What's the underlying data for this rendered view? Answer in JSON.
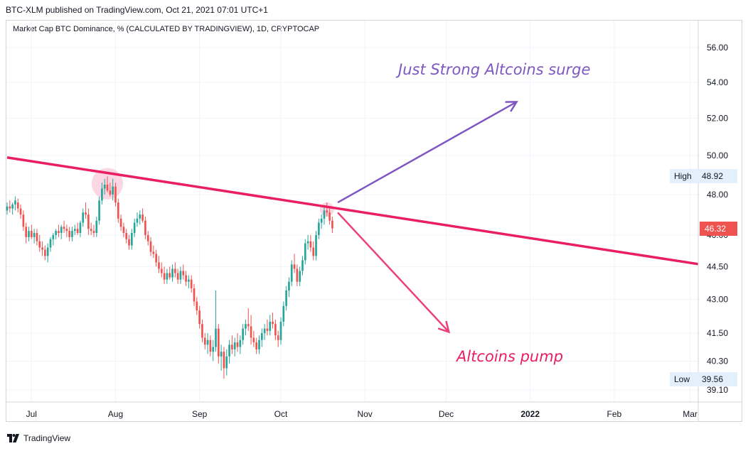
{
  "header": {
    "publisher": "BTC-XLM published on TradingView.com, Oct 21, 2021 07:01 UTC+1",
    "subtitle": "Market Cap BTC Dominance, % (CALCULATED BY TRADINGVIEW), 1D, CRYPTOCAP"
  },
  "footer": {
    "brand": "TradingView"
  },
  "colors": {
    "up": "#26a69a",
    "down": "#ef5350",
    "trendline": "#e91e63",
    "arrow_up": "#7e57c2",
    "arrow_down": "#ec407a",
    "circle": "#f8bbd0",
    "grid": "#f0f3fa",
    "axis_text": "#131722"
  },
  "chart_data": {
    "type": "candlestick",
    "y_axis": {
      "scale": "log",
      "position": "right",
      "tick_labels": [
        "56.00",
        "54.00",
        "52.00",
        "50.00",
        "48.00",
        "46.00",
        "44.50",
        "43.00",
        "41.50",
        "40.30",
        "39.10"
      ],
      "tick_values": [
        56.0,
        54.0,
        52.0,
        50.0,
        48.0,
        46.0,
        44.5,
        43.0,
        41.5,
        40.3,
        39.1
      ],
      "range": [
        38.7,
        57.5
      ]
    },
    "x_axis": {
      "tick_labels": [
        "Jul",
        "Aug",
        "Sep",
        "Oct",
        "Nov",
        "Dec",
        "2022",
        "Feb",
        "Mar"
      ],
      "tick_dates": [
        "2021-07-01",
        "2021-08-01",
        "2021-09-01",
        "2021-10-01",
        "2021-11-01",
        "2021-12-01",
        "2022-01-01",
        "2022-02-01",
        "2022-03-01"
      ],
      "bold_labels": [
        "2022"
      ],
      "range": [
        "2021-06-22",
        "2022-03-04"
      ]
    },
    "grid": true,
    "series": [
      {
        "date": "2021-06-22",
        "open": 47.2,
        "high": 47.6,
        "low": 47.0,
        "close": 47.4
      },
      {
        "date": "2021-06-23",
        "open": 47.4,
        "high": 47.7,
        "low": 47.1,
        "close": 47.3
      },
      {
        "date": "2021-06-24",
        "open": 47.3,
        "high": 47.6,
        "low": 47.0,
        "close": 47.5
      },
      {
        "date": "2021-06-25",
        "open": 47.5,
        "high": 47.9,
        "low": 47.2,
        "close": 47.7
      },
      {
        "date": "2021-06-26",
        "open": 47.6,
        "high": 47.8,
        "low": 47.1,
        "close": 47.3
      },
      {
        "date": "2021-06-27",
        "open": 47.3,
        "high": 47.5,
        "low": 46.8,
        "close": 47.0
      },
      {
        "date": "2021-06-28",
        "open": 47.0,
        "high": 47.2,
        "low": 46.2,
        "close": 46.4
      },
      {
        "date": "2021-06-29",
        "open": 46.4,
        "high": 46.6,
        "low": 45.6,
        "close": 45.9
      },
      {
        "date": "2021-06-30",
        "open": 45.9,
        "high": 46.4,
        "low": 45.7,
        "close": 46.2
      },
      {
        "date": "2021-07-01",
        "open": 46.2,
        "high": 46.5,
        "low": 45.8,
        "close": 45.9
      },
      {
        "date": "2021-07-02",
        "open": 45.9,
        "high": 46.3,
        "low": 45.6,
        "close": 46.1
      },
      {
        "date": "2021-07-03",
        "open": 46.1,
        "high": 46.3,
        "low": 45.5,
        "close": 45.7
      },
      {
        "date": "2021-07-04",
        "open": 45.7,
        "high": 46.0,
        "low": 45.2,
        "close": 45.4
      },
      {
        "date": "2021-07-05",
        "open": 45.4,
        "high": 45.7,
        "low": 45.0,
        "close": 45.3
      },
      {
        "date": "2021-07-06",
        "open": 45.3,
        "high": 45.5,
        "low": 44.8,
        "close": 45.0
      },
      {
        "date": "2021-07-07",
        "open": 45.0,
        "high": 45.6,
        "low": 44.7,
        "close": 45.4
      },
      {
        "date": "2021-07-08",
        "open": 45.4,
        "high": 45.9,
        "low": 45.2,
        "close": 45.8
      },
      {
        "date": "2021-07-09",
        "open": 45.8,
        "high": 46.1,
        "low": 45.5,
        "close": 46.0
      },
      {
        "date": "2021-07-10",
        "open": 46.0,
        "high": 46.3,
        "low": 45.8,
        "close": 46.2
      },
      {
        "date": "2021-07-11",
        "open": 46.2,
        "high": 46.5,
        "low": 45.9,
        "close": 46.1
      },
      {
        "date": "2021-07-12",
        "open": 46.1,
        "high": 46.5,
        "low": 45.8,
        "close": 46.4
      },
      {
        "date": "2021-07-13",
        "open": 46.4,
        "high": 46.7,
        "low": 46.1,
        "close": 46.3
      },
      {
        "date": "2021-07-14",
        "open": 46.3,
        "high": 46.5,
        "low": 45.9,
        "close": 46.2
      },
      {
        "date": "2021-07-15",
        "open": 46.2,
        "high": 46.4,
        "low": 45.7,
        "close": 45.9
      },
      {
        "date": "2021-07-16",
        "open": 45.9,
        "high": 46.4,
        "low": 45.7,
        "close": 46.2
      },
      {
        "date": "2021-07-17",
        "open": 46.2,
        "high": 46.5,
        "low": 46.0,
        "close": 46.3
      },
      {
        "date": "2021-07-18",
        "open": 46.3,
        "high": 46.6,
        "low": 46.0,
        "close": 46.1
      },
      {
        "date": "2021-07-19",
        "open": 46.1,
        "high": 46.7,
        "low": 45.9,
        "close": 46.6
      },
      {
        "date": "2021-07-20",
        "open": 46.6,
        "high": 47.3,
        "low": 46.4,
        "close": 47.1
      },
      {
        "date": "2021-07-21",
        "open": 47.1,
        "high": 47.6,
        "low": 46.8,
        "close": 47.0
      },
      {
        "date": "2021-07-22",
        "open": 47.0,
        "high": 47.3,
        "low": 46.0,
        "close": 46.3
      },
      {
        "date": "2021-07-23",
        "open": 46.3,
        "high": 46.6,
        "low": 46.0,
        "close": 46.2
      },
      {
        "date": "2021-07-24",
        "open": 46.2,
        "high": 46.5,
        "low": 45.9,
        "close": 46.1
      },
      {
        "date": "2021-07-25",
        "open": 46.1,
        "high": 46.9,
        "low": 45.9,
        "close": 46.7
      },
      {
        "date": "2021-07-26",
        "open": 46.7,
        "high": 47.9,
        "low": 46.5,
        "close": 47.7
      },
      {
        "date": "2021-07-27",
        "open": 47.7,
        "high": 48.6,
        "low": 47.5,
        "close": 48.3
      },
      {
        "date": "2021-07-28",
        "open": 48.3,
        "high": 48.8,
        "low": 48.0,
        "close": 48.5
      },
      {
        "date": "2021-07-29",
        "open": 48.5,
        "high": 48.92,
        "low": 48.1,
        "close": 48.2
      },
      {
        "date": "2021-07-30",
        "open": 48.2,
        "high": 48.6,
        "low": 47.9,
        "close": 48.0
      },
      {
        "date": "2021-07-31",
        "open": 48.0,
        "high": 48.8,
        "low": 47.7,
        "close": 48.4
      },
      {
        "date": "2021-08-01",
        "open": 48.4,
        "high": 48.6,
        "low": 47.4,
        "close": 47.6
      },
      {
        "date": "2021-08-02",
        "open": 47.6,
        "high": 47.8,
        "low": 46.6,
        "close": 46.8
      },
      {
        "date": "2021-08-03",
        "open": 46.8,
        "high": 47.0,
        "low": 46.2,
        "close": 46.4
      },
      {
        "date": "2021-08-04",
        "open": 46.4,
        "high": 46.6,
        "low": 45.9,
        "close": 46.1
      },
      {
        "date": "2021-08-05",
        "open": 46.1,
        "high": 46.3,
        "low": 45.6,
        "close": 45.8
      },
      {
        "date": "2021-08-06",
        "open": 45.8,
        "high": 46.0,
        "low": 45.3,
        "close": 45.5
      },
      {
        "date": "2021-08-07",
        "open": 45.5,
        "high": 46.3,
        "low": 45.3,
        "close": 46.1
      },
      {
        "date": "2021-08-08",
        "open": 46.1,
        "high": 46.8,
        "low": 45.9,
        "close": 46.6
      },
      {
        "date": "2021-08-09",
        "open": 46.6,
        "high": 47.1,
        "low": 46.4,
        "close": 46.8
      },
      {
        "date": "2021-08-10",
        "open": 46.8,
        "high": 47.2,
        "low": 46.5,
        "close": 47.0
      },
      {
        "date": "2021-08-11",
        "open": 47.0,
        "high": 47.3,
        "low": 46.6,
        "close": 46.7
      },
      {
        "date": "2021-08-12",
        "open": 46.7,
        "high": 46.9,
        "low": 45.8,
        "close": 46.0
      },
      {
        "date": "2021-08-13",
        "open": 46.0,
        "high": 46.2,
        "low": 45.5,
        "close": 45.7
      },
      {
        "date": "2021-08-14",
        "open": 45.7,
        "high": 45.9,
        "low": 45.0,
        "close": 45.2
      },
      {
        "date": "2021-08-15",
        "open": 45.2,
        "high": 45.5,
        "low": 44.9,
        "close": 45.1
      },
      {
        "date": "2021-08-16",
        "open": 45.1,
        "high": 45.3,
        "low": 44.5,
        "close": 44.7
      },
      {
        "date": "2021-08-17",
        "open": 44.7,
        "high": 45.0,
        "low": 44.2,
        "close": 44.4
      },
      {
        "date": "2021-08-18",
        "open": 44.4,
        "high": 44.7,
        "low": 44.0,
        "close": 44.2
      },
      {
        "date": "2021-08-19",
        "open": 44.2,
        "high": 44.5,
        "low": 43.7,
        "close": 43.9
      },
      {
        "date": "2021-08-20",
        "open": 43.9,
        "high": 44.4,
        "low": 43.7,
        "close": 44.2
      },
      {
        "date": "2021-08-21",
        "open": 44.2,
        "high": 44.5,
        "low": 43.9,
        "close": 44.0
      },
      {
        "date": "2021-08-22",
        "open": 44.0,
        "high": 44.6,
        "low": 43.8,
        "close": 44.4
      },
      {
        "date": "2021-08-23",
        "open": 44.4,
        "high": 44.7,
        "low": 44.0,
        "close": 44.2
      },
      {
        "date": "2021-08-24",
        "open": 44.2,
        "high": 44.4,
        "low": 43.7,
        "close": 43.9
      },
      {
        "date": "2021-08-25",
        "open": 43.9,
        "high": 44.5,
        "low": 43.7,
        "close": 44.3
      },
      {
        "date": "2021-08-26",
        "open": 44.3,
        "high": 44.6,
        "low": 43.9,
        "close": 44.1
      },
      {
        "date": "2021-08-27",
        "open": 44.1,
        "high": 44.3,
        "low": 43.6,
        "close": 43.8
      },
      {
        "date": "2021-08-28",
        "open": 43.8,
        "high": 44.1,
        "low": 43.5,
        "close": 43.9
      },
      {
        "date": "2021-08-29",
        "open": 43.9,
        "high": 44.1,
        "low": 43.3,
        "close": 43.5
      },
      {
        "date": "2021-08-30",
        "open": 43.5,
        "high": 43.7,
        "low": 42.7,
        "close": 42.9
      },
      {
        "date": "2021-08-31",
        "open": 42.9,
        "high": 43.1,
        "low": 42.3,
        "close": 42.5
      },
      {
        "date": "2021-09-01",
        "open": 42.5,
        "high": 42.7,
        "low": 41.7,
        "close": 41.9
      },
      {
        "date": "2021-09-02",
        "open": 41.9,
        "high": 42.1,
        "low": 41.1,
        "close": 41.3
      },
      {
        "date": "2021-09-03",
        "open": 41.3,
        "high": 41.5,
        "low": 40.8,
        "close": 41.0
      },
      {
        "date": "2021-09-04",
        "open": 41.0,
        "high": 41.5,
        "low": 40.6,
        "close": 41.2
      },
      {
        "date": "2021-09-05",
        "open": 41.2,
        "high": 41.4,
        "low": 40.5,
        "close": 40.7
      },
      {
        "date": "2021-09-06",
        "open": 40.7,
        "high": 41.2,
        "low": 40.3,
        "close": 40.9
      },
      {
        "date": "2021-09-07",
        "open": 40.9,
        "high": 43.4,
        "low": 40.7,
        "close": 41.7
      },
      {
        "date": "2021-09-08",
        "open": 41.7,
        "high": 41.9,
        "low": 40.2,
        "close": 40.5
      },
      {
        "date": "2021-09-09",
        "open": 40.5,
        "high": 41.0,
        "low": 39.9,
        "close": 40.7
      },
      {
        "date": "2021-09-10",
        "open": 40.7,
        "high": 40.9,
        "low": 39.56,
        "close": 40.0
      },
      {
        "date": "2021-09-11",
        "open": 40.0,
        "high": 40.8,
        "low": 39.7,
        "close": 40.5
      },
      {
        "date": "2021-09-12",
        "open": 40.5,
        "high": 41.2,
        "low": 40.2,
        "close": 41.0
      },
      {
        "date": "2021-09-13",
        "open": 41.0,
        "high": 41.4,
        "low": 40.6,
        "close": 40.8
      },
      {
        "date": "2021-09-14",
        "open": 40.8,
        "high": 41.3,
        "low": 40.5,
        "close": 41.1
      },
      {
        "date": "2021-09-15",
        "open": 41.1,
        "high": 41.5,
        "low": 40.7,
        "close": 40.9
      },
      {
        "date": "2021-09-16",
        "open": 40.9,
        "high": 41.4,
        "low": 40.6,
        "close": 41.2
      },
      {
        "date": "2021-09-17",
        "open": 41.2,
        "high": 41.9,
        "low": 41.0,
        "close": 41.7
      },
      {
        "date": "2021-09-18",
        "open": 41.7,
        "high": 42.1,
        "low": 41.4,
        "close": 41.9
      },
      {
        "date": "2021-09-19",
        "open": 41.9,
        "high": 42.6,
        "low": 41.6,
        "close": 41.8
      },
      {
        "date": "2021-09-20",
        "open": 41.8,
        "high": 42.3,
        "low": 41.0,
        "close": 41.3
      },
      {
        "date": "2021-09-21",
        "open": 41.3,
        "high": 41.6,
        "low": 40.9,
        "close": 41.1
      },
      {
        "date": "2021-09-22",
        "open": 41.1,
        "high": 41.3,
        "low": 40.6,
        "close": 40.8
      },
      {
        "date": "2021-09-23",
        "open": 40.8,
        "high": 41.4,
        "low": 40.6,
        "close": 41.2
      },
      {
        "date": "2021-09-24",
        "open": 41.2,
        "high": 41.7,
        "low": 40.9,
        "close": 41.5
      },
      {
        "date": "2021-09-25",
        "open": 41.5,
        "high": 41.9,
        "low": 41.2,
        "close": 41.7
      },
      {
        "date": "2021-09-26",
        "open": 41.7,
        "high": 42.1,
        "low": 41.4,
        "close": 41.6
      },
      {
        "date": "2021-09-27",
        "open": 41.6,
        "high": 42.3,
        "low": 41.4,
        "close": 42.0
      },
      {
        "date": "2021-09-28",
        "open": 42.0,
        "high": 42.4,
        "low": 41.7,
        "close": 41.9
      },
      {
        "date": "2021-09-29",
        "open": 41.9,
        "high": 42.1,
        "low": 41.2,
        "close": 41.4
      },
      {
        "date": "2021-09-30",
        "open": 41.4,
        "high": 41.6,
        "low": 40.9,
        "close": 41.2
      },
      {
        "date": "2021-10-01",
        "open": 41.2,
        "high": 42.2,
        "low": 41.0,
        "close": 42.0
      },
      {
        "date": "2021-10-02",
        "open": 42.0,
        "high": 42.9,
        "low": 41.8,
        "close": 42.7
      },
      {
        "date": "2021-10-03",
        "open": 42.7,
        "high": 43.6,
        "low": 42.5,
        "close": 43.4
      },
      {
        "date": "2021-10-04",
        "open": 43.4,
        "high": 44.0,
        "low": 43.1,
        "close": 43.8
      },
      {
        "date": "2021-10-05",
        "open": 43.8,
        "high": 44.8,
        "low": 43.6,
        "close": 44.6
      },
      {
        "date": "2021-10-06",
        "open": 44.6,
        "high": 45.1,
        "low": 44.2,
        "close": 44.4
      },
      {
        "date": "2021-10-07",
        "open": 44.4,
        "high": 44.6,
        "low": 43.6,
        "close": 43.8
      },
      {
        "date": "2021-10-08",
        "open": 43.8,
        "high": 44.5,
        "low": 43.6,
        "close": 44.3
      },
      {
        "date": "2021-10-09",
        "open": 44.3,
        "high": 45.0,
        "low": 44.1,
        "close": 44.8
      },
      {
        "date": "2021-10-10",
        "open": 44.8,
        "high": 45.8,
        "low": 44.6,
        "close": 45.6
      },
      {
        "date": "2021-10-11",
        "open": 45.6,
        "high": 46.0,
        "low": 45.3,
        "close": 45.7
      },
      {
        "date": "2021-10-12",
        "open": 45.7,
        "high": 46.0,
        "low": 45.2,
        "close": 45.4
      },
      {
        "date": "2021-10-13",
        "open": 45.4,
        "high": 45.7,
        "low": 44.8,
        "close": 45.0
      },
      {
        "date": "2021-10-14",
        "open": 45.0,
        "high": 46.2,
        "low": 44.8,
        "close": 46.0
      },
      {
        "date": "2021-10-15",
        "open": 46.0,
        "high": 46.8,
        "low": 45.8,
        "close": 46.6
      },
      {
        "date": "2021-10-16",
        "open": 46.6,
        "high": 47.0,
        "low": 46.3,
        "close": 46.8
      },
      {
        "date": "2021-10-17",
        "open": 46.8,
        "high": 47.4,
        "low": 46.5,
        "close": 47.2
      },
      {
        "date": "2021-10-18",
        "open": 47.2,
        "high": 47.6,
        "low": 46.9,
        "close": 47.1
      },
      {
        "date": "2021-10-19",
        "open": 47.1,
        "high": 47.4,
        "low": 46.5,
        "close": 46.7
      },
      {
        "date": "2021-10-20",
        "open": 46.7,
        "high": 46.9,
        "low": 46.1,
        "close": 46.32
      }
    ],
    "price_labels": {
      "high_label": "High",
      "high_value": "48.92",
      "low_label": "Low",
      "low_value": "39.56",
      "last_value": "46.32",
      "last_price": 46.32
    },
    "drawings": {
      "trendline": {
        "start": {
          "date": "2021-06-22",
          "price": 49.9
        },
        "end": {
          "date": "2022-03-04",
          "price": 44.62
        }
      },
      "circles": [
        {
          "date": "2021-07-29",
          "price": 48.55,
          "radius_days": 5.8
        },
        {
          "date": "2021-10-18",
          "price": 47.25,
          "radius_days": 2.6
        }
      ],
      "arrow_up": {
        "start": {
          "date": "2021-10-22",
          "price": 47.6
        },
        "end": {
          "date": "2021-12-27",
          "price": 52.9
        }
      },
      "arrow_down": {
        "start": {
          "date": "2021-10-22",
          "price": 47.1
        },
        "end": {
          "date": "2021-12-02",
          "price": 41.55
        }
      }
    },
    "annotations": [
      {
        "text": "Just Strong Altcoins surge"
      },
      {
        "text": "Altcoins pump"
      }
    ]
  }
}
